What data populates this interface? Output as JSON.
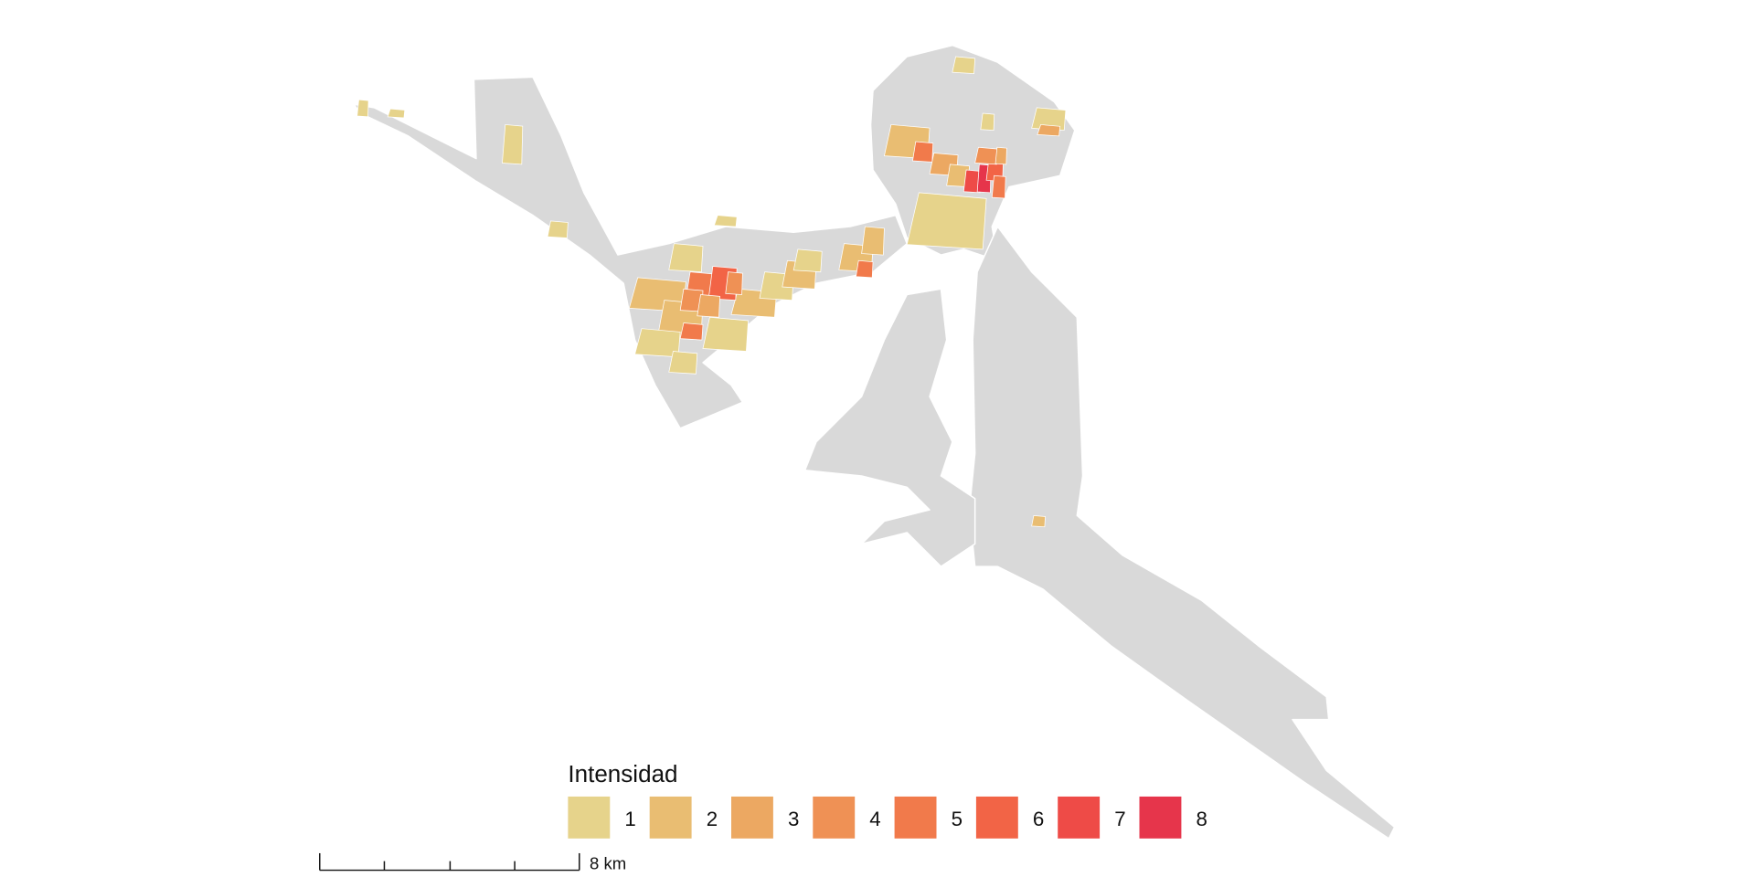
{
  "legend": {
    "title": "Intensidad",
    "items": [
      {
        "value": 1,
        "color": "#e6d38b"
      },
      {
        "value": 2,
        "color": "#e9bd72"
      },
      {
        "value": 3,
        "color": "#eca862"
      },
      {
        "value": 4,
        "color": "#ef9155"
      },
      {
        "value": 5,
        "color": "#f17a4b"
      },
      {
        "value": 6,
        "color": "#f26446"
      },
      {
        "value": 7,
        "color": "#ee4b47"
      },
      {
        "value": 8,
        "color": "#e6354b"
      }
    ]
  },
  "scale_bar": {
    "label": "8 km"
  },
  "regions": {
    "intensity": [
      2,
      2,
      1,
      1,
      1,
      2,
      1,
      2,
      1,
      5,
      6,
      4,
      4,
      3,
      5,
      1,
      1,
      1,
      1,
      1,
      1,
      2,
      2,
      5,
      1,
      2,
      5,
      3,
      2,
      7,
      8,
      6,
      5,
      4,
      3,
      1,
      3,
      1,
      1,
      2
    ]
  }
}
